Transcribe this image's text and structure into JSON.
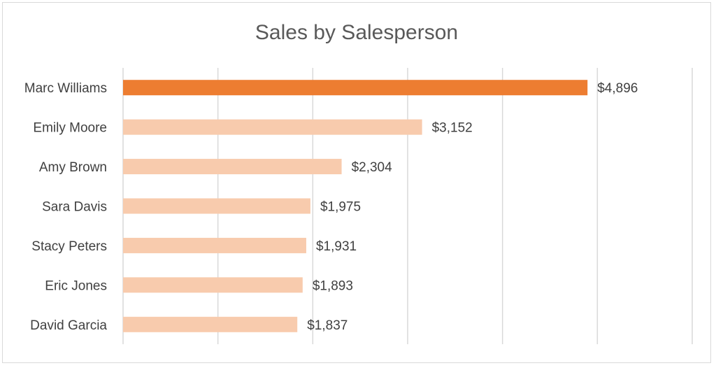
{
  "chart_data": {
    "type": "bar",
    "orientation": "horizontal",
    "title": "Sales by Salesperson",
    "xlabel": "",
    "ylabel": "",
    "categories": [
      "Marc Williams",
      "Emily Moore",
      "Amy Brown",
      "Sara Davis",
      "Stacy Peters",
      "Eric Jones",
      "David Garcia"
    ],
    "values": [
      4896,
      3152,
      2304,
      1975,
      1931,
      1893,
      1837
    ],
    "data_labels": [
      "$4,896",
      "$3,152",
      "$2,304",
      "$1,975",
      "$1,931",
      "$1,893",
      "$1,837"
    ],
    "xlim": [
      0,
      6000
    ],
    "grid": true,
    "legend": "none",
    "highlight_index": 0,
    "colors": {
      "highlight": "#ED7D31",
      "bar": "#F8CBAD",
      "grid": "#D9D9D9",
      "text": "#404040",
      "title": "#595959"
    }
  }
}
